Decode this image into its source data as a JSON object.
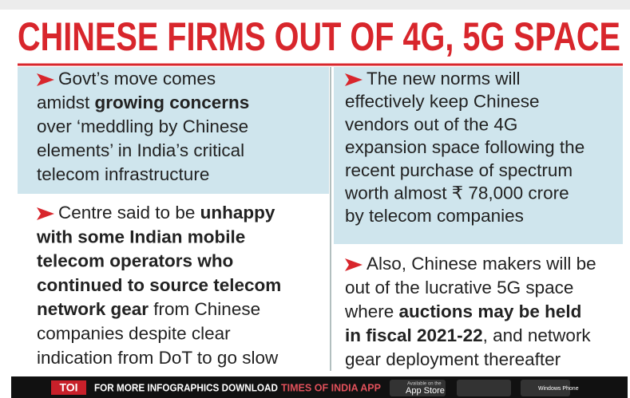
{
  "title": "CHINESE FIRMS OUT OF 4G, 5G SPACE",
  "columns": [
    {
      "paragraphs": [
        {
          "lines": [
            {
              "runs": [
                {
                  "text": "Govt’s move comes",
                  "bold": false
                }
              ]
            },
            {
              "runs": [
                {
                  "text": "amidst ",
                  "bold": false
                },
                {
                  "text": "growing concerns",
                  "bold": true
                }
              ]
            },
            {
              "runs": [
                {
                  "text": "over ‘meddling by Chinese",
                  "bold": false
                }
              ]
            },
            {
              "runs": [
                {
                  "text": "elements’ in India’s critical",
                  "bold": false
                }
              ]
            },
            {
              "runs": [
                {
                  "text": "telecom infrastructure",
                  "bold": false
                }
              ]
            }
          ]
        },
        {
          "lines": [
            {
              "runs": [
                {
                  "text": "Centre said to be ",
                  "bold": false
                },
                {
                  "text": "unhappy",
                  "bold": true
                }
              ]
            },
            {
              "runs": [
                {
                  "text": "with some Indian mobile",
                  "bold": true
                }
              ]
            },
            {
              "runs": [
                {
                  "text": "telecom operators who",
                  "bold": true
                }
              ]
            },
            {
              "runs": [
                {
                  "text": "continued to source telecom",
                  "bold": true
                }
              ]
            },
            {
              "runs": [
                {
                  "text": "network gear",
                  "bold": true
                },
                {
                  "text": " from Chinese",
                  "bold": false
                }
              ]
            },
            {
              "runs": [
                {
                  "text": "companies despite clear",
                  "bold": false
                }
              ]
            },
            {
              "runs": [
                {
                  "text": "indication from DoT to go slow",
                  "bold": false
                }
              ]
            }
          ]
        }
      ]
    },
    {
      "paragraphs": [
        {
          "lines": [
            {
              "runs": [
                {
                  "text": "The new norms will",
                  "bold": false
                }
              ]
            },
            {
              "runs": [
                {
                  "text": "effectively keep Chinese",
                  "bold": false
                }
              ]
            },
            {
              "runs": [
                {
                  "text": "vendors out of the 4G",
                  "bold": false
                }
              ]
            },
            {
              "runs": [
                {
                  "text": "expansion space following the",
                  "bold": false
                }
              ]
            },
            {
              "runs": [
                {
                  "text": "recent purchase of spectrum",
                  "bold": false
                }
              ]
            },
            {
              "runs": [
                {
                  "text": "worth almost ₹ 78,000 crore",
                  "bold": false
                }
              ]
            },
            {
              "runs": [
                {
                  "text": "by telecom companies",
                  "bold": false
                }
              ]
            }
          ]
        },
        {
          "lines": [
            {
              "runs": [
                {
                  "text": "Also, Chinese makers will be",
                  "bold": false
                }
              ]
            },
            {
              "runs": [
                {
                  "text": "out of the lucrative 5G space",
                  "bold": false
                }
              ]
            },
            {
              "runs": [
                {
                  "text": "where ",
                  "bold": false
                },
                {
                  "text": "auctions may be held",
                  "bold": true
                }
              ]
            },
            {
              "runs": [
                {
                  "text": "in fiscal 2021-22",
                  "bold": true
                },
                {
                  "text": ", and network",
                  "bold": false
                }
              ]
            },
            {
              "runs": [
                {
                  "text": "gear deployment thereafter",
                  "bold": false
                }
              ]
            }
          ]
        }
      ]
    }
  ],
  "footer": {
    "brand": "TOI",
    "text": "FOR MORE INFOGRAPHICS DOWNLOAD",
    "app": "TIMES OF INDIA APP",
    "appstore_small": "Available on the",
    "appstore": "App Store",
    "windows": "Windows Phone"
  }
}
